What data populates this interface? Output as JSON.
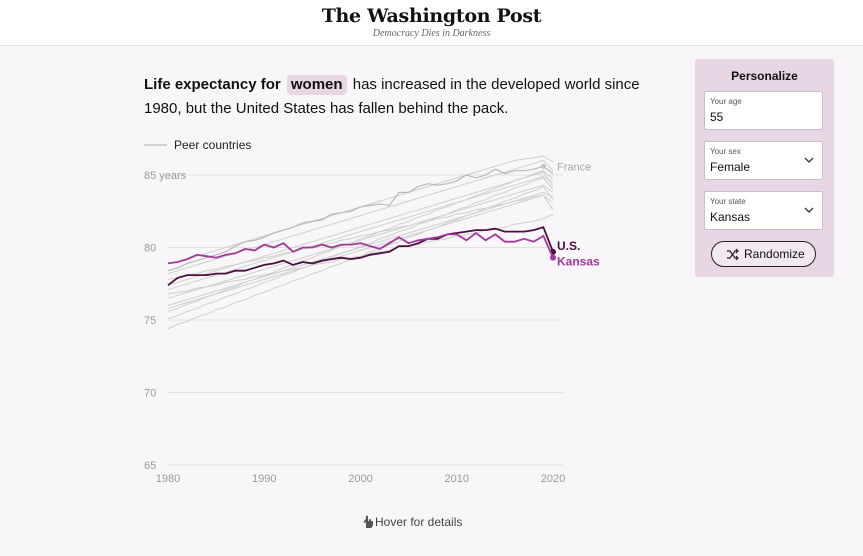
{
  "masthead": {
    "logo": "The Washington Post",
    "tagline": "Democracy Dies in Darkness"
  },
  "headline": {
    "part1": "Life expectancy for",
    "highlight": "women",
    "part2": "has increased in the developed world since 1980, but the United States has fallen behind the pack."
  },
  "personalize": {
    "title": "Personalize",
    "age_label": "Your age",
    "age_value": "55",
    "sex_label": "Your sex",
    "sex_value": "Female",
    "state_label": "Your state",
    "state_value": "Kansas",
    "randomize_label": "Randomize"
  },
  "hover_hint": "Hover for details",
  "colors": {
    "peer": "#cfcfcf",
    "us": "#4a0f3f",
    "kansas": "#a23a9b",
    "panel": "#e9d6e4",
    "france": "#a8a8a8"
  },
  "chart_data": {
    "type": "line",
    "legend": "Peer countries",
    "ytick_labels": [
      "85 years",
      "80",
      "75",
      "70",
      "65"
    ],
    "yticks": [
      85,
      80,
      75,
      70,
      65
    ],
    "xticks": [
      1980,
      1990,
      2000,
      2010,
      2020
    ],
    "xlim": [
      1980,
      2021
    ],
    "ylim": [
      65,
      86
    ],
    "grid": true,
    "x": [
      1980,
      1981,
      1982,
      1983,
      1984,
      1985,
      1986,
      1987,
      1988,
      1989,
      1990,
      1991,
      1992,
      1993,
      1994,
      1995,
      1996,
      1997,
      1998,
      1999,
      2000,
      2001,
      2002,
      2003,
      2004,
      2005,
      2006,
      2007,
      2008,
      2009,
      2010,
      2011,
      2012,
      2013,
      2014,
      2015,
      2016,
      2017,
      2018,
      2019,
      2020
    ],
    "series": [
      {
        "name": "U.S.",
        "values": [
          77.4,
          77.9,
          78.1,
          78.1,
          78.1,
          78.2,
          78.2,
          78.4,
          78.4,
          78.6,
          78.8,
          78.9,
          79.1,
          78.8,
          79.0,
          78.9,
          79.1,
          79.2,
          79.3,
          79.2,
          79.3,
          79.5,
          79.6,
          79.7,
          80.1,
          80.1,
          80.3,
          80.6,
          80.6,
          80.9,
          81.0,
          81.1,
          81.2,
          81.2,
          81.3,
          81.1,
          81.1,
          81.1,
          81.2,
          81.4,
          79.7
        ]
      },
      {
        "name": "Kansas",
        "values": [
          78.9,
          79.0,
          79.2,
          79.5,
          79.4,
          79.3,
          79.5,
          79.6,
          79.9,
          79.8,
          80.2,
          80.0,
          80.3,
          79.7,
          80.0,
          80.0,
          80.2,
          80.0,
          80.2,
          80.2,
          80.3,
          80.1,
          79.9,
          80.3,
          80.7,
          80.3,
          80.5,
          80.6,
          80.7,
          80.9,
          80.9,
          80.5,
          81.0,
          80.5,
          80.9,
          80.4,
          80.4,
          80.6,
          80.4,
          80.8,
          79.3
        ]
      },
      {
        "name": "France",
        "values": [
          78.4,
          78.6,
          78.9,
          79.1,
          79.3,
          79.5,
          79.7,
          80.1,
          80.4,
          80.5,
          80.7,
          81.0,
          81.2,
          81.4,
          81.7,
          81.8,
          81.9,
          82.3,
          82.4,
          82.5,
          82.8,
          82.9,
          83.0,
          82.9,
          83.8,
          83.8,
          84.2,
          84.4,
          84.3,
          84.4,
          84.6,
          85.0,
          84.8,
          85.0,
          85.4,
          85.1,
          85.3,
          85.3,
          85.4,
          85.6,
          85.1
        ]
      }
    ],
    "peer_countries": [
      {
        "values": [
          75.1,
          75.3,
          75.6,
          75.8,
          76.1,
          76.3,
          76.6,
          76.8,
          77.1,
          77.3,
          77.6,
          77.8,
          78.1,
          78.3,
          78.6,
          78.8,
          79.1,
          79.3,
          79.6,
          79.8,
          80.1,
          80.3,
          80.6,
          80.8,
          81.1,
          81.3,
          81.6,
          81.8,
          82.1,
          82.3,
          82.6,
          82.8,
          83.1,
          83.3,
          83.6,
          83.8,
          84.1,
          84.3,
          84.6,
          84.8,
          84.0
        ]
      },
      {
        "values": [
          76.5,
          76.7,
          76.9,
          77.1,
          77.3,
          77.5,
          77.7,
          77.9,
          78.1,
          78.3,
          78.5,
          78.7,
          78.9,
          79.1,
          79.3,
          79.5,
          79.7,
          79.9,
          80.1,
          80.3,
          80.5,
          80.7,
          80.9,
          81.1,
          81.3,
          81.5,
          81.7,
          81.9,
          82.1,
          82.3,
          82.5,
          82.7,
          82.9,
          83.1,
          83.3,
          83.5,
          83.7,
          83.9,
          84.1,
          84.3,
          83.8
        ]
      },
      {
        "values": [
          78.2,
          78.4,
          78.6,
          78.8,
          79.0,
          79.2,
          79.4,
          79.6,
          79.8,
          80.0,
          80.2,
          80.4,
          80.6,
          80.8,
          81.0,
          81.2,
          81.4,
          81.6,
          81.8,
          82.0,
          82.2,
          82.4,
          82.6,
          82.8,
          83.0,
          83.2,
          83.4,
          83.6,
          83.8,
          84.0,
          84.2,
          84.4,
          84.6,
          84.8,
          85.0,
          85.2,
          85.4,
          85.6,
          85.8,
          86.0,
          85.3
        ]
      },
      {
        "values": [
          77.8,
          77.9,
          78.1,
          78.2,
          78.4,
          78.5,
          78.7,
          78.8,
          79.0,
          79.1,
          79.3,
          79.4,
          79.6,
          79.7,
          79.9,
          80.0,
          80.2,
          80.3,
          80.5,
          80.6,
          80.8,
          80.9,
          81.1,
          81.2,
          81.4,
          81.5,
          81.7,
          81.8,
          82.0,
          82.1,
          82.3,
          82.4,
          82.6,
          82.7,
          82.9,
          83.0,
          83.2,
          83.3,
          83.5,
          83.6,
          83.1
        ]
      },
      {
        "values": [
          74.4,
          74.7,
          74.9,
          75.2,
          75.4,
          75.7,
          75.9,
          76.2,
          76.4,
          76.7,
          76.9,
          77.2,
          77.4,
          77.7,
          77.9,
          78.2,
          78.4,
          78.7,
          78.9,
          79.2,
          79.4,
          79.7,
          79.9,
          80.2,
          80.4,
          80.7,
          80.9,
          81.2,
          81.4,
          81.7,
          81.9,
          82.2,
          82.4,
          82.7,
          82.9,
          83.2,
          83.4,
          83.7,
          83.9,
          84.2,
          83.3
        ]
      },
      {
        "values": [
          76.0,
          76.2,
          76.4,
          76.6,
          76.8,
          77.0,
          77.2,
          77.4,
          77.6,
          77.8,
          78.0,
          78.2,
          78.4,
          78.6,
          78.8,
          79.0,
          79.2,
          79.4,
          79.6,
          79.8,
          80.0,
          80.2,
          80.4,
          80.6,
          80.8,
          81.0,
          81.2,
          81.4,
          81.6,
          81.8,
          82.0,
          82.2,
          82.4,
          82.6,
          82.8,
          83.0,
          83.2,
          83.4,
          83.6,
          83.8,
          83.5
        ]
      },
      {
        "values": [
          77.1,
          77.3,
          77.5,
          77.7,
          77.9,
          78.1,
          78.3,
          78.5,
          78.7,
          78.9,
          79.1,
          79.3,
          79.5,
          79.7,
          79.9,
          80.1,
          80.3,
          80.5,
          80.7,
          80.9,
          81.1,
          81.3,
          81.5,
          81.7,
          81.9,
          82.1,
          82.3,
          82.5,
          82.7,
          82.9,
          83.1,
          83.3,
          83.5,
          83.7,
          83.9,
          84.1,
          84.3,
          84.5,
          84.7,
          84.9,
          84.5
        ]
      },
      {
        "values": [
          75.6,
          75.8,
          76.1,
          76.3,
          76.6,
          76.8,
          77.1,
          77.3,
          77.6,
          77.8,
          78.1,
          78.3,
          78.6,
          78.8,
          79.1,
          79.3,
          79.6,
          79.8,
          80.1,
          80.3,
          80.6,
          80.8,
          81.1,
          81.3,
          81.6,
          81.8,
          82.1,
          82.3,
          82.6,
          82.8,
          83.1,
          83.3,
          83.6,
          83.8,
          84.1,
          84.3,
          84.6,
          84.8,
          85.1,
          85.3,
          84.7
        ]
      },
      {
        "values": [
          76.8,
          76.9,
          77.0,
          77.2,
          77.3,
          77.4,
          77.6,
          77.7,
          77.8,
          78.0,
          78.1,
          78.2,
          78.4,
          78.5,
          78.6,
          78.8,
          78.9,
          79.0,
          79.2,
          79.3,
          79.4,
          79.6,
          79.7,
          79.8,
          80.0,
          80.1,
          80.2,
          80.4,
          80.5,
          80.6,
          80.8,
          80.9,
          81.0,
          81.2,
          81.3,
          81.4,
          81.6,
          81.7,
          81.8,
          82.0,
          82.3
        ]
      },
      {
        "values": [
          78.9,
          79.0,
          79.2,
          79.4,
          79.6,
          79.8,
          80.0,
          80.2,
          80.4,
          80.6,
          80.8,
          81.0,
          81.2,
          81.4,
          81.6,
          81.8,
          82.0,
          82.2,
          82.4,
          82.6,
          82.8,
          83.0,
          83.2,
          83.4,
          83.6,
          83.8,
          84.0,
          84.2,
          84.4,
          84.6,
          84.8,
          85.0,
          85.2,
          85.4,
          85.6,
          85.8,
          86.0,
          86.1,
          86.2,
          86.3,
          85.9
        ]
      },
      {
        "values": [
          75.8,
          76.0,
          76.2,
          76.4,
          76.6,
          76.8,
          77.0,
          77.2,
          77.4,
          77.6,
          77.8,
          78.0,
          78.2,
          78.4,
          78.6,
          78.8,
          79.0,
          79.2,
          79.4,
          79.6,
          79.8,
          80.0,
          80.2,
          80.4,
          80.6,
          80.8,
          81.0,
          81.2,
          81.4,
          81.6,
          81.8,
          82.0,
          82.2,
          82.4,
          82.6,
          82.8,
          83.0,
          83.2,
          83.4,
          83.6,
          82.6
        ]
      },
      {
        "values": [
          77.4,
          77.6,
          77.8,
          78.0,
          78.2,
          78.4,
          78.6,
          78.8,
          79.0,
          79.2,
          79.4,
          79.6,
          79.8,
          80.0,
          80.2,
          80.4,
          80.6,
          80.8,
          81.0,
          81.2,
          81.4,
          81.6,
          81.8,
          82.0,
          82.2,
          82.4,
          82.6,
          82.8,
          83.0,
          83.2,
          83.4,
          83.6,
          83.8,
          84.0,
          84.2,
          84.4,
          84.6,
          84.8,
          85.0,
          85.2,
          84.2
        ]
      }
    ]
  }
}
